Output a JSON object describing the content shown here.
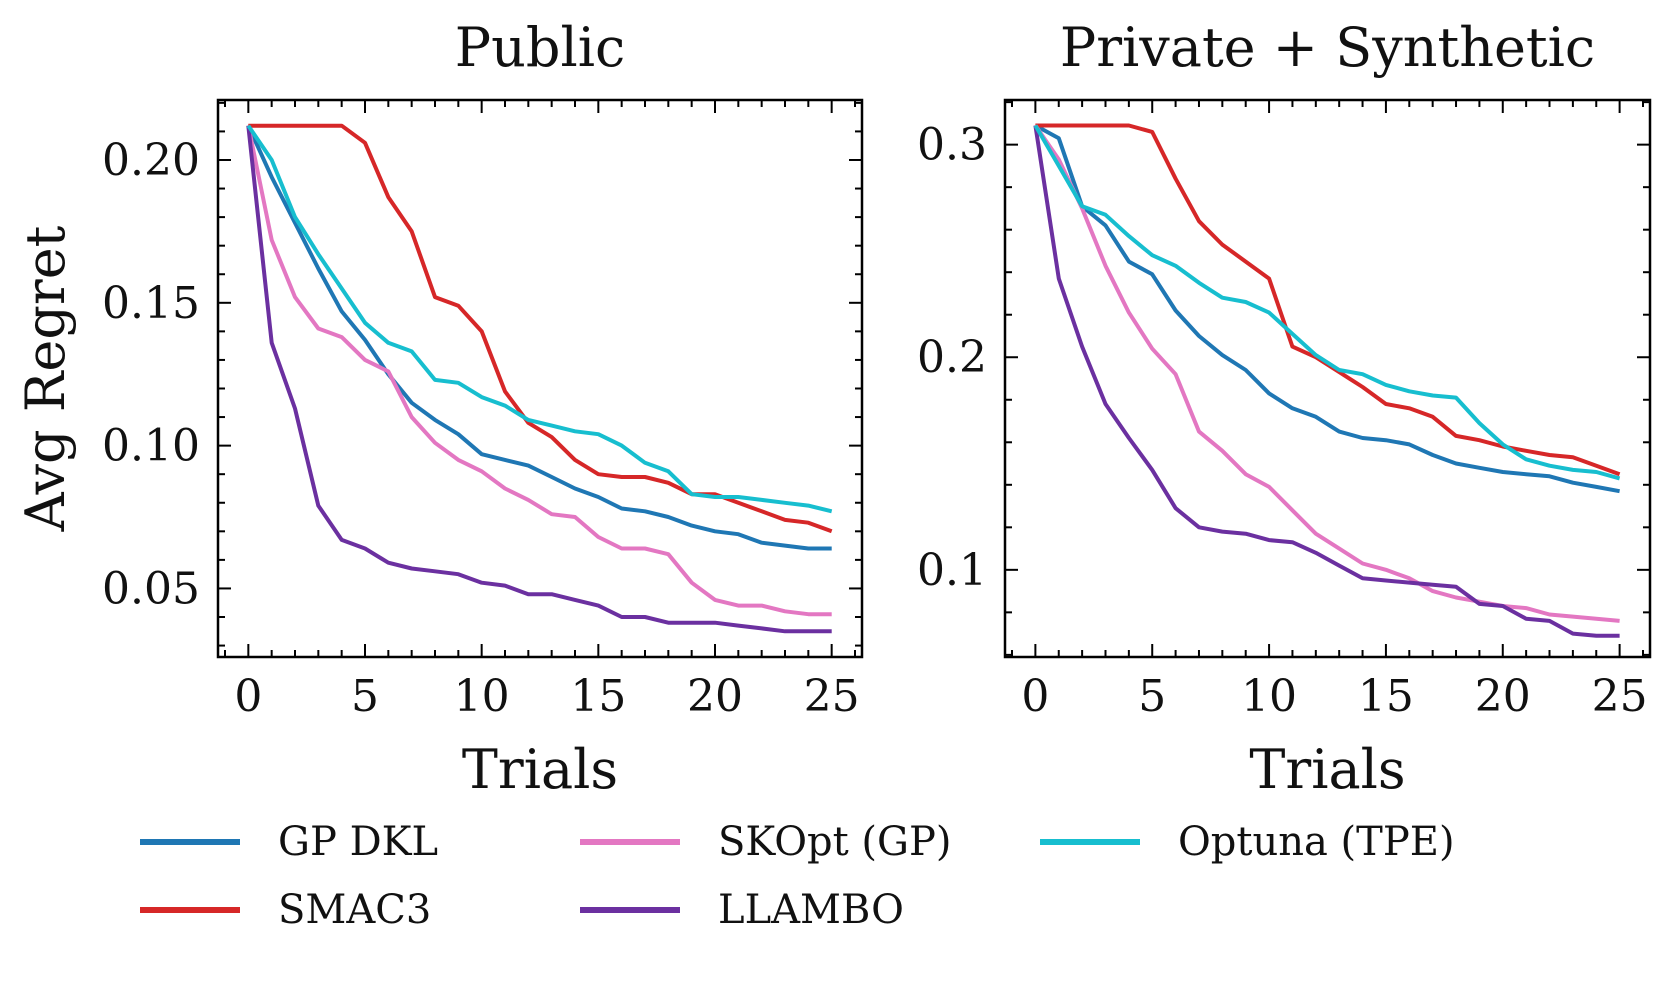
{
  "chart_data": [
    {
      "type": "line",
      "title": "Public",
      "xlabel": "Trials",
      "ylabel": "Avg Regret",
      "xlim": [
        -1.3,
        26.3
      ],
      "ylim": [
        0.026,
        0.221
      ],
      "xticks": [
        0,
        5,
        10,
        15,
        20,
        25
      ],
      "yticks": [
        0.05,
        0.1,
        0.15,
        0.2
      ],
      "ytick_labels": [
        "0.05",
        "0.10",
        "0.15",
        "0.20"
      ],
      "x": [
        0,
        1,
        2,
        3,
        4,
        5,
        6,
        7,
        8,
        9,
        10,
        11,
        12,
        13,
        14,
        15,
        16,
        17,
        18,
        19,
        20,
        21,
        22,
        23,
        24,
        25
      ],
      "series": [
        {
          "name": "GP DKL",
          "values": [
            0.212,
            0.194,
            0.178,
            0.162,
            0.147,
            0.137,
            0.125,
            0.115,
            0.109,
            0.104,
            0.097,
            0.095,
            0.093,
            0.089,
            0.085,
            0.082,
            0.078,
            0.077,
            0.075,
            0.072,
            0.07,
            0.069,
            0.066,
            0.065,
            0.064,
            0.064
          ]
        },
        {
          "name": "SMAC3",
          "values": [
            0.212,
            0.212,
            0.212,
            0.212,
            0.212,
            0.206,
            0.187,
            0.175,
            0.152,
            0.149,
            0.14,
            0.119,
            0.108,
            0.103,
            0.095,
            0.09,
            0.089,
            0.089,
            0.087,
            0.083,
            0.083,
            0.08,
            0.077,
            0.074,
            0.073,
            0.07
          ]
        },
        {
          "name": "SKOpt (GP)",
          "values": [
            0.212,
            0.172,
            0.152,
            0.141,
            0.138,
            0.13,
            0.126,
            0.11,
            0.101,
            0.095,
            0.091,
            0.085,
            0.081,
            0.076,
            0.075,
            0.068,
            0.064,
            0.064,
            0.062,
            0.052,
            0.046,
            0.044,
            0.044,
            0.042,
            0.041,
            0.041
          ]
        },
        {
          "name": "LLAMBO",
          "values": [
            0.212,
            0.136,
            0.113,
            0.079,
            0.067,
            0.064,
            0.059,
            0.057,
            0.056,
            0.055,
            0.052,
            0.051,
            0.048,
            0.048,
            0.046,
            0.044,
            0.04,
            0.04,
            0.038,
            0.038,
            0.038,
            0.037,
            0.036,
            0.035,
            0.035,
            0.035
          ]
        },
        {
          "name": "Optuna (TPE)",
          "values": [
            0.212,
            0.2,
            0.18,
            0.167,
            0.155,
            0.143,
            0.136,
            0.133,
            0.123,
            0.122,
            0.117,
            0.114,
            0.109,
            0.107,
            0.105,
            0.104,
            0.1,
            0.094,
            0.091,
            0.083,
            0.082,
            0.082,
            0.081,
            0.08,
            0.079,
            0.077
          ]
        }
      ]
    },
    {
      "type": "line",
      "title": "Private + Synthetic",
      "xlabel": "Trials",
      "ylabel": "",
      "xlim": [
        -1.3,
        26.3
      ],
      "ylim": [
        0.059,
        0.321
      ],
      "xticks": [
        0,
        5,
        10,
        15,
        20,
        25
      ],
      "yticks": [
        0.1,
        0.2,
        0.3
      ],
      "ytick_labels": [
        "0.1",
        "0.2",
        "0.3"
      ],
      "x": [
        0,
        1,
        2,
        3,
        4,
        5,
        6,
        7,
        8,
        9,
        10,
        11,
        12,
        13,
        14,
        15,
        16,
        17,
        18,
        19,
        20,
        21,
        22,
        23,
        24,
        25
      ],
      "series": [
        {
          "name": "GP DKL",
          "values": [
            0.309,
            0.303,
            0.271,
            0.262,
            0.245,
            0.239,
            0.222,
            0.21,
            0.201,
            0.194,
            0.183,
            0.176,
            0.172,
            0.165,
            0.162,
            0.161,
            0.159,
            0.154,
            0.15,
            0.148,
            0.146,
            0.145,
            0.144,
            0.141,
            0.139,
            0.137
          ]
        },
        {
          "name": "SMAC3",
          "values": [
            0.309,
            0.309,
            0.309,
            0.309,
            0.309,
            0.306,
            0.284,
            0.264,
            0.253,
            0.245,
            0.237,
            0.205,
            0.2,
            0.193,
            0.186,
            0.178,
            0.176,
            0.172,
            0.163,
            0.161,
            0.158,
            0.156,
            0.154,
            0.153,
            0.149,
            0.145
          ]
        },
        {
          "name": "SKOpt (GP)",
          "values": [
            0.309,
            0.293,
            0.27,
            0.243,
            0.221,
            0.204,
            0.192,
            0.165,
            0.156,
            0.145,
            0.139,
            0.128,
            0.117,
            0.11,
            0.103,
            0.1,
            0.096,
            0.09,
            0.087,
            0.085,
            0.083,
            0.082,
            0.079,
            0.078,
            0.077,
            0.076
          ]
        },
        {
          "name": "LLAMBO",
          "values": [
            0.309,
            0.237,
            0.205,
            0.178,
            0.162,
            0.147,
            0.129,
            0.12,
            0.118,
            0.117,
            0.114,
            0.113,
            0.108,
            0.102,
            0.096,
            0.095,
            0.094,
            0.093,
            0.092,
            0.084,
            0.083,
            0.077,
            0.076,
            0.07,
            0.069,
            0.069
          ]
        },
        {
          "name": "Optuna (TPE)",
          "values": [
            0.309,
            0.29,
            0.271,
            0.267,
            0.257,
            0.248,
            0.243,
            0.235,
            0.228,
            0.226,
            0.221,
            0.211,
            0.201,
            0.194,
            0.192,
            0.187,
            0.184,
            0.182,
            0.181,
            0.169,
            0.159,
            0.152,
            0.149,
            0.147,
            0.146,
            0.143
          ]
        }
      ]
    }
  ],
  "legend": [
    {
      "name": "GP DKL",
      "color": "#1f77b4"
    },
    {
      "name": "SMAC3",
      "color": "#d62728"
    },
    {
      "name": "SKOpt (GP)",
      "color": "#e377c2"
    },
    {
      "name": "LLAMBO",
      "color": "#6b30a0"
    },
    {
      "name": "Optuna (TPE)",
      "color": "#17becf"
    }
  ]
}
